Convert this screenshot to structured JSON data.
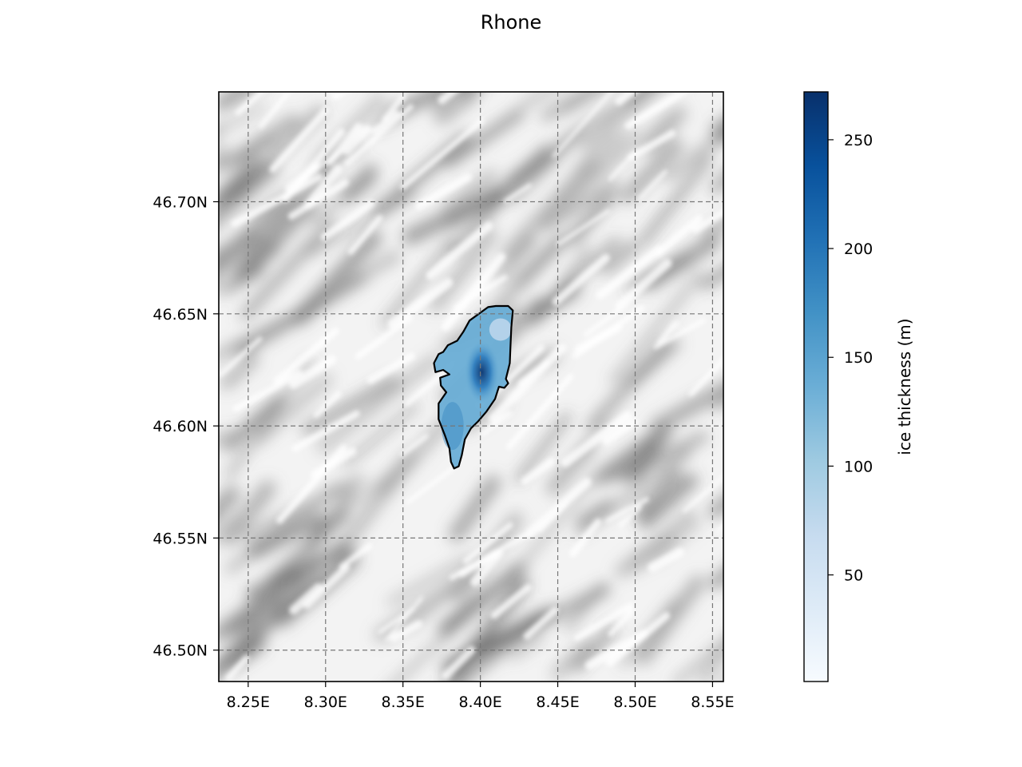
{
  "title": "Rhone",
  "map": {
    "lon_range": [
      8.231,
      8.557
    ],
    "lat_range": [
      46.486,
      46.749
    ],
    "lon_ticks": [
      {
        "value": 8.25,
        "label": "8.25E"
      },
      {
        "value": 8.3,
        "label": "8.30E"
      },
      {
        "value": 8.35,
        "label": "8.35E"
      },
      {
        "value": 8.4,
        "label": "8.40E"
      },
      {
        "value": 8.45,
        "label": "8.45E"
      },
      {
        "value": 8.5,
        "label": "8.50E"
      },
      {
        "value": 8.55,
        "label": "8.55E"
      }
    ],
    "lat_ticks": [
      {
        "value": 46.5,
        "label": "46.50N"
      },
      {
        "value": 46.55,
        "label": "46.55N"
      },
      {
        "value": 46.6,
        "label": "46.60N"
      },
      {
        "value": 46.65,
        "label": "46.65N"
      },
      {
        "value": 46.7,
        "label": "46.70N"
      }
    ],
    "grid": true,
    "background": "hillshade",
    "glacier_outline": [
      [
        8.41,
        46.6535
      ],
      [
        8.418,
        46.6535
      ],
      [
        8.421,
        46.6515
      ],
      [
        8.42,
        46.644
      ],
      [
        8.4195,
        46.636
      ],
      [
        8.419,
        46.628
      ],
      [
        8.4165,
        46.621
      ],
      [
        8.418,
        46.619
      ],
      [
        8.4155,
        46.617
      ],
      [
        8.412,
        46.6175
      ],
      [
        8.4095,
        46.612
      ],
      [
        8.404,
        46.6065
      ],
      [
        8.3985,
        46.602
      ],
      [
        8.394,
        46.599
      ],
      [
        8.39,
        46.594
      ],
      [
        8.388,
        46.587
      ],
      [
        8.386,
        46.582
      ],
      [
        8.383,
        46.581
      ],
      [
        8.381,
        46.584
      ],
      [
        8.38,
        46.59
      ],
      [
        8.377,
        46.596
      ],
      [
        8.373,
        46.603
      ],
      [
        8.373,
        46.61
      ],
      [
        8.378,
        46.615
      ],
      [
        8.3745,
        46.618
      ],
      [
        8.374,
        46.6215
      ],
      [
        8.38,
        46.623
      ],
      [
        8.376,
        46.625
      ],
      [
        8.371,
        46.624
      ],
      [
        8.37,
        46.628
      ],
      [
        8.373,
        46.632
      ],
      [
        8.376,
        46.633
      ],
      [
        8.379,
        46.636
      ],
      [
        8.385,
        46.638
      ],
      [
        8.389,
        46.642
      ],
      [
        8.393,
        46.647
      ],
      [
        8.399,
        46.65
      ],
      [
        8.405,
        46.653
      ]
    ]
  },
  "colorbar": {
    "label": "ice thickness (m)",
    "min": 1,
    "max": 272,
    "colormap": "Blues",
    "color_low": "#f7fbff",
    "color_high": "#08306b",
    "ticks": [
      {
        "value": 50,
        "label": "50"
      },
      {
        "value": 100,
        "label": "100"
      },
      {
        "value": 150,
        "label": "150"
      },
      {
        "value": 200,
        "label": "200"
      },
      {
        "value": 250,
        "label": "250"
      }
    ]
  }
}
